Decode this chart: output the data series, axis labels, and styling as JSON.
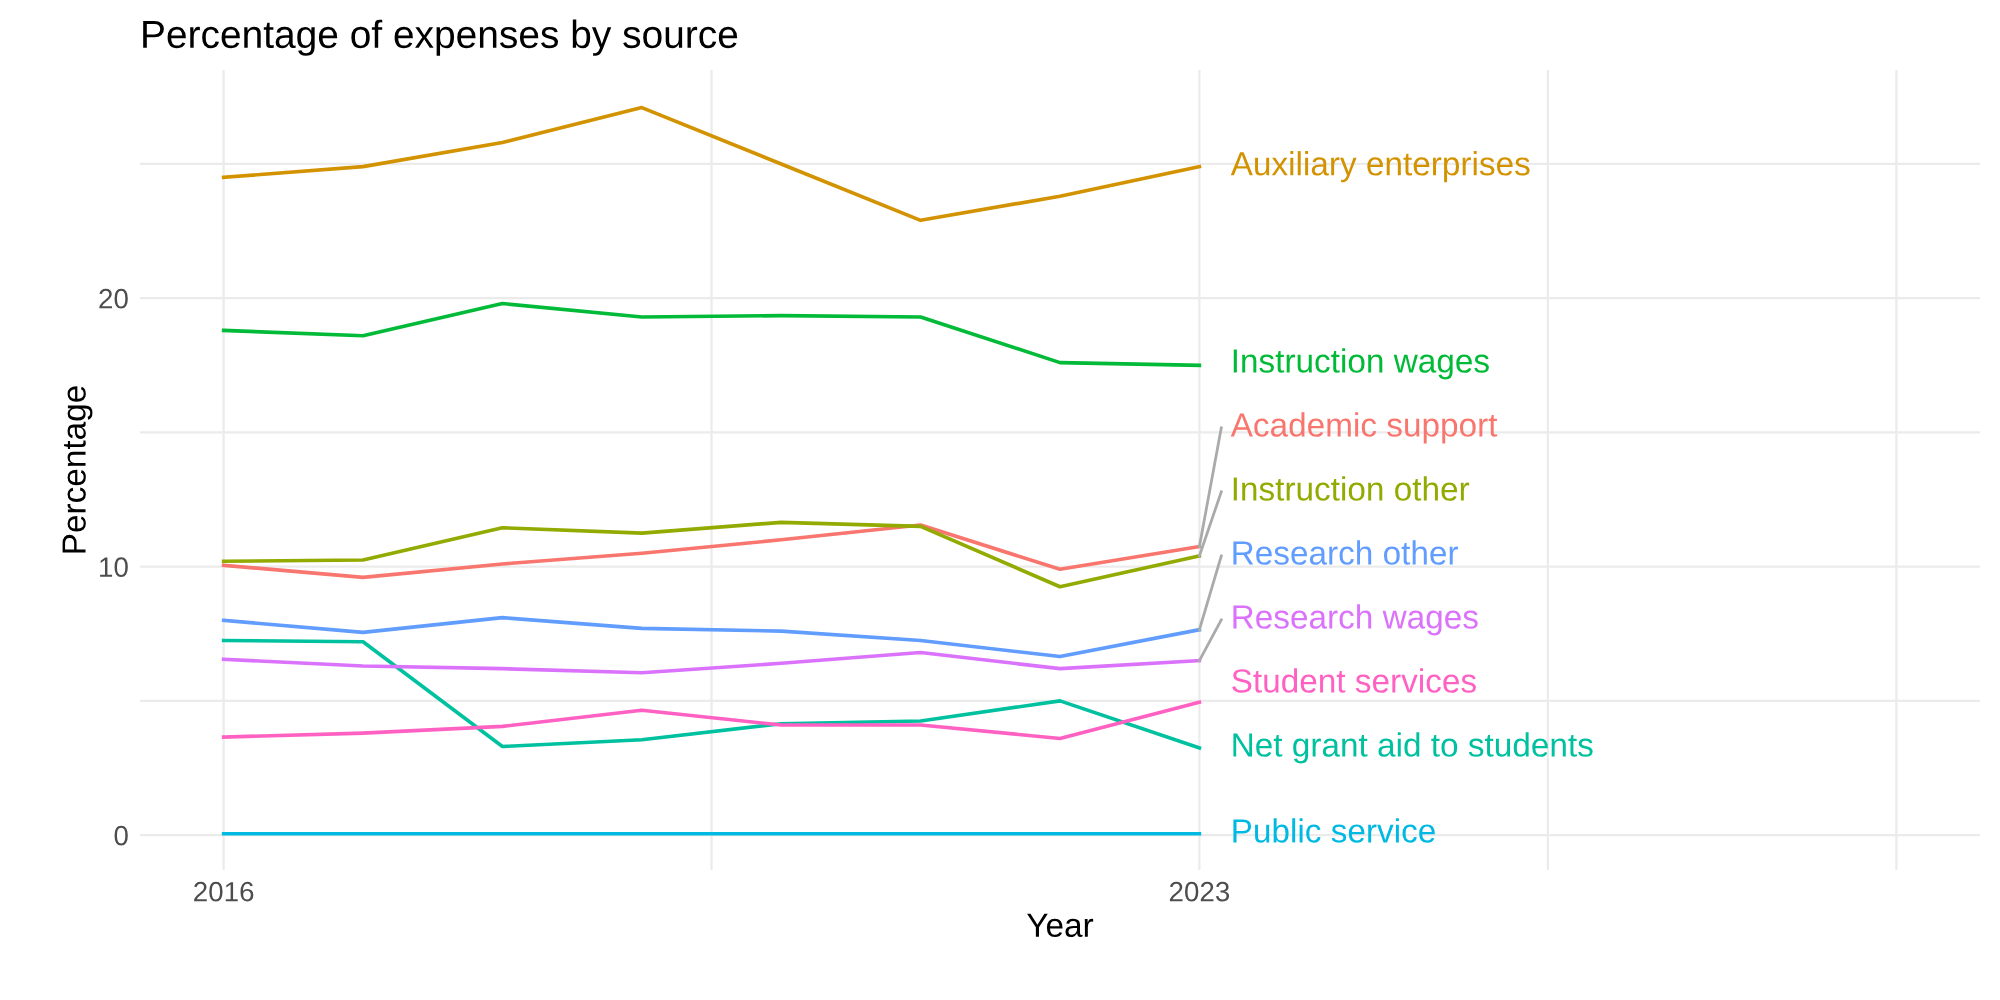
{
  "chart_data": {
    "type": "line",
    "title": "Percentage of expenses by source",
    "xlabel": "Year",
    "ylabel": "Percentage",
    "x": [
      2016,
      2017,
      2018,
      2019,
      2020,
      2021,
      2022,
      2023
    ],
    "series": [
      {
        "name": "Academic support",
        "color": "#f8766d",
        "values": [
          10.05,
          9.6,
          10.1,
          10.5,
          11.0,
          11.55,
          9.9,
          10.75
        ]
      },
      {
        "name": "Auxiliary enterprises",
        "color": "#d39200",
        "values": [
          24.5,
          24.9,
          25.8,
          27.1,
          25.0,
          22.9,
          23.8,
          24.9
        ]
      },
      {
        "name": "Instruction other",
        "color": "#93aa00",
        "values": [
          10.2,
          10.25,
          11.45,
          11.25,
          11.65,
          11.5,
          9.25,
          10.4
        ]
      },
      {
        "name": "Instruction wages",
        "color": "#00ba38",
        "values": [
          18.8,
          18.6,
          19.8,
          19.3,
          19.35,
          19.3,
          17.6,
          17.5
        ]
      },
      {
        "name": "Net grant aid to students",
        "color": "#00c19f",
        "values": [
          7.25,
          7.2,
          3.3,
          3.55,
          4.15,
          4.25,
          5.0,
          3.25
        ]
      },
      {
        "name": "Public service",
        "color": "#00b9e3",
        "values": [
          0.05,
          0.05,
          0.05,
          0.05,
          0.05,
          0.05,
          0.05,
          0.05
        ]
      },
      {
        "name": "Research other",
        "color": "#619cff",
        "values": [
          8.0,
          7.55,
          8.1,
          7.7,
          7.6,
          7.25,
          6.65,
          7.65
        ]
      },
      {
        "name": "Research wages",
        "color": "#db72fb",
        "values": [
          6.55,
          6.3,
          6.2,
          6.05,
          6.4,
          6.8,
          6.2,
          6.5
        ]
      },
      {
        "name": "Student services",
        "color": "#ff61c3",
        "values": [
          3.65,
          3.8,
          4.05,
          4.65,
          4.1,
          4.1,
          3.6,
          4.95
        ]
      }
    ],
    "xlim": [
      2015.4,
      2028.6
    ],
    "xticks": [
      2016,
      {
        "value": 2019.5,
        "label": null
      },
      2023,
      {
        "value": 2025.5,
        "label": null
      },
      {
        "value": 2028,
        "label": null
      }
    ],
    "ylim": [
      -1.3,
      28.5
    ],
    "yticks": [
      0,
      {
        "value": 5,
        "label": null
      },
      10,
      {
        "value": 15,
        "label": null
      },
      20,
      {
        "value": 25,
        "label": null
      }
    ],
    "grid": true,
    "legend": false,
    "line_style": "solid",
    "marker": "none"
  }
}
